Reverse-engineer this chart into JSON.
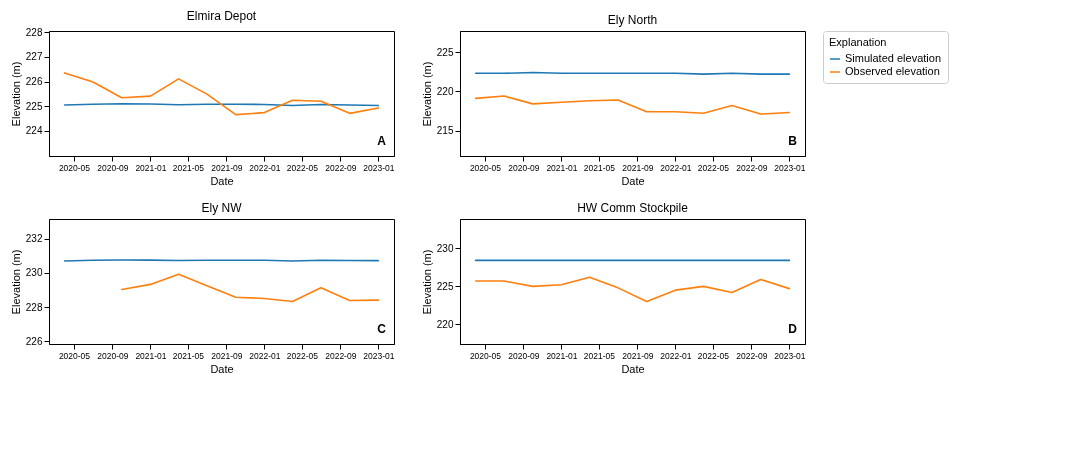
{
  "chart_data": [
    {
      "type": "line",
      "title": "Elmira Depot",
      "xlabel": "Date",
      "ylabel": "Elevation (m)",
      "annotations": [
        "A"
      ],
      "grid": false,
      "legend": false,
      "x": [
        "2020-04-01",
        "2020-07-01",
        "2020-10-01",
        "2021-01-01",
        "2021-04-01",
        "2021-07-01",
        "2021-10-01",
        "2022-01-01",
        "2022-04-01",
        "2022-07-01",
        "2022-10-01",
        "2023-01-01"
      ],
      "xlim": [
        "2020-02-11",
        "2023-02-20"
      ],
      "xticks": [
        "2020-05",
        "2020-09",
        "2021-01",
        "2021-05",
        "2021-09",
        "2022-01",
        "2022-05",
        "2022-09",
        "2023-01"
      ],
      "ylim": [
        222.98,
        228.05
      ],
      "yticks": [
        224,
        225,
        226,
        227,
        228
      ],
      "series": [
        {
          "color": "#1f77b4",
          "values": [
            225.05,
            225.08,
            225.1,
            225.09,
            225.06,
            225.08,
            225.08,
            225.07,
            225.03,
            225.07,
            225.05,
            225.03
          ]
        },
        {
          "color": "#ff7f0e",
          "values": [
            226.35,
            225.98,
            225.34,
            225.41,
            226.11,
            225.49,
            224.66,
            224.74,
            225.24,
            225.2,
            224.71,
            224.93
          ]
        }
      ]
    },
    {
      "type": "line",
      "title": "Ely North",
      "xlabel": "Date",
      "ylabel": "Elevation (m)",
      "annotations": [
        "B"
      ],
      "grid": false,
      "legend": "right",
      "legend_title": "Explanation",
      "x": [
        "2020-04-01",
        "2020-07-01",
        "2020-10-01",
        "2021-01-01",
        "2021-04-01",
        "2021-07-01",
        "2021-10-01",
        "2022-01-01",
        "2022-04-01",
        "2022-07-01",
        "2022-10-01",
        "2023-01-01"
      ],
      "xlim": [
        "2020-02-11",
        "2023-02-20"
      ],
      "xticks": [
        "2020-05",
        "2020-09",
        "2021-01",
        "2021-05",
        "2021-09",
        "2022-01",
        "2022-05",
        "2022-09",
        "2023-01"
      ],
      "ylim": [
        211.75,
        227.7
      ],
      "yticks": [
        215,
        220,
        225
      ],
      "series": [
        {
          "name": "Simulated elevation",
          "color": "#1f77b4",
          "values": [
            222.3,
            222.3,
            222.4,
            222.3,
            222.3,
            222.3,
            222.3,
            222.3,
            222.2,
            222.3,
            222.2,
            222.2
          ]
        },
        {
          "name": "Observed elevation",
          "color": "#ff7f0e",
          "values": [
            219.1,
            219.4,
            218.4,
            218.6,
            218.8,
            218.9,
            217.4,
            217.4,
            217.2,
            218.2,
            217.1,
            217.3
          ]
        }
      ]
    },
    {
      "type": "line",
      "title": "Ely NW",
      "xlabel": "Date",
      "ylabel": "Elevation (m)",
      "annotations": [
        "C"
      ],
      "grid": false,
      "legend": false,
      "x": [
        "2020-04-01",
        "2020-07-01",
        "2020-10-01",
        "2021-01-01",
        "2021-04-01",
        "2021-07-01",
        "2021-10-01",
        "2022-01-01",
        "2022-04-01",
        "2022-07-01",
        "2022-10-01",
        "2023-01-01"
      ],
      "xlim": [
        "2020-02-11",
        "2023-02-20"
      ],
      "xticks": [
        "2020-05",
        "2020-09",
        "2021-01",
        "2021-05",
        "2021-09",
        "2022-01",
        "2022-05",
        "2022-09",
        "2023-01"
      ],
      "ylim": [
        225.85,
        233.15
      ],
      "yticks": [
        226,
        228,
        230,
        232
      ],
      "series": [
        {
          "color": "#1f77b4",
          "values": [
            230.7,
            230.74,
            230.76,
            230.75,
            230.73,
            230.74,
            230.74,
            230.74,
            230.7,
            230.74,
            230.73,
            230.72
          ]
        },
        {
          "color": "#ff7f0e",
          "values": [
            null,
            null,
            229.03,
            229.33,
            229.92,
            229.25,
            228.58,
            228.51,
            228.33,
            229.13,
            228.39,
            228.41
          ]
        }
      ]
    },
    {
      "type": "line",
      "title": "HW Comm Stockpile",
      "xlabel": "Date",
      "ylabel": "Elevation (m)",
      "annotations": [
        "D"
      ],
      "grid": false,
      "legend": false,
      "x": [
        "2020-04-01",
        "2020-07-01",
        "2020-10-01",
        "2021-01-01",
        "2021-04-01",
        "2021-07-01",
        "2021-10-01",
        "2022-01-01",
        "2022-04-01",
        "2022-07-01",
        "2022-10-01",
        "2023-01-01"
      ],
      "xlim": [
        "2020-02-11",
        "2023-02-20"
      ],
      "xticks": [
        "2020-05",
        "2020-09",
        "2021-01",
        "2021-05",
        "2021-09",
        "2022-01",
        "2022-05",
        "2022-09",
        "2023-01"
      ],
      "ylim": [
        217.44,
        233.83
      ],
      "yticks": [
        220,
        225,
        230
      ],
      "series": [
        {
          "color": "#1f77b4",
          "values": [
            228.4,
            228.4,
            228.4,
            228.4,
            228.4,
            228.4,
            228.4,
            228.4,
            228.4,
            228.4,
            228.4,
            228.4
          ]
        },
        {
          "color": "#ff7f0e",
          "values": [
            225.7,
            225.7,
            225.0,
            225.2,
            226.2,
            224.8,
            223.0,
            224.5,
            225.0,
            224.2,
            225.9,
            224.7
          ]
        }
      ]
    }
  ]
}
